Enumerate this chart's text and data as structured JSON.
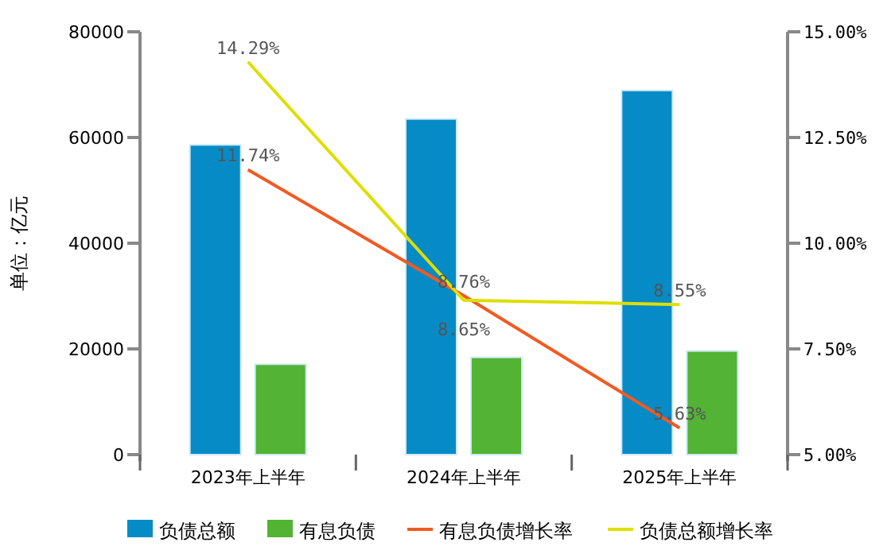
{
  "chart_data": {
    "type": "bar",
    "ylabel": "单位：亿元",
    "categories": [
      "2023年上半年",
      "2024年上半年",
      "2025年上半年"
    ],
    "ylim": [
      0,
      80000
    ],
    "yticks": [
      0,
      20000,
      40000,
      60000,
      80000
    ],
    "y2lim": [
      5,
      15
    ],
    "y2ticks": [
      {
        "value": 5,
        "label": "5.00%"
      },
      {
        "value": 7.5,
        "label": "7.50%"
      },
      {
        "value": 10,
        "label": "10.00%"
      },
      {
        "value": 12.5,
        "label": "12.50%"
      },
      {
        "value": 15,
        "label": "15.00%"
      }
    ],
    "legend": "bottom",
    "grid": false,
    "series": [
      {
        "name": "负债总额",
        "color": "#078bc6",
        "values": [
          58600,
          63500,
          68900
        ]
      },
      {
        "name": "有息负债",
        "color": "#52b334",
        "values": [
          17100,
          18400,
          19600
        ]
      },
      {
        "name": "有息负债增长率",
        "type": "line",
        "axis": "y2",
        "color": "#f15a22",
        "values": [
          11.74,
          8.76,
          5.63
        ],
        "value_labels": [
          "11.74%",
          "8.76%",
          "5.63%"
        ]
      },
      {
        "name": "负债总额增长率",
        "type": "line",
        "axis": "y2",
        "color": "#dede00",
        "values": [
          14.29,
          8.65,
          8.55
        ],
        "value_labels": [
          "14.29%",
          "8.65%",
          "8.55%"
        ]
      }
    ]
  }
}
